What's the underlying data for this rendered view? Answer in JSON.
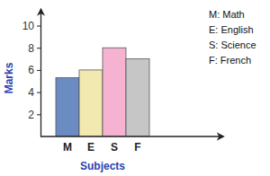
{
  "chart_data": {
    "type": "bar",
    "x_label": "Subjects",
    "y_label": "Marks",
    "categories": [
      "M",
      "E",
      "S",
      "F"
    ],
    "values": [
      5.3,
      6,
      8,
      7
    ],
    "colors": [
      "#6a8cc2",
      "#f2e9b0",
      "#f6b3d1",
      "#c6c6c6"
    ],
    "ylim": [
      0,
      11.5
    ],
    "yticks": [
      2,
      4,
      6,
      8,
      10
    ],
    "grid": false,
    "annotations": [
      "M: Math",
      "E: English",
      "S: Science",
      "F: French"
    ]
  }
}
